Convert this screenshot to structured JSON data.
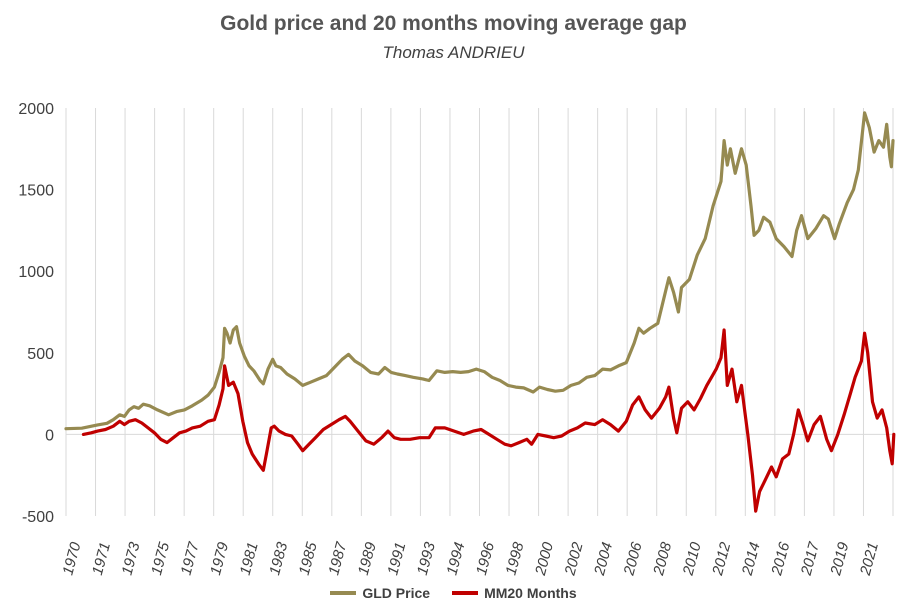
{
  "chart_data": {
    "type": "line",
    "title": "Gold price and 20 months moving average gap",
    "subtitle": "Thomas ANDRIEU",
    "xlabel": "",
    "ylabel": "",
    "ylim": [
      -500,
      2000
    ],
    "yticks": [
      -500,
      0,
      500,
      1000,
      1500,
      2000
    ],
    "xlim": [
      1970,
      2022.4
    ],
    "xticks": [
      "1970",
      "1971",
      "1973",
      "1975",
      "1977",
      "1979",
      "1981",
      "1983",
      "1985",
      "1987",
      "1989",
      "1991",
      "1993",
      "1994",
      "1996",
      "1998",
      "2000",
      "2002",
      "2004",
      "2006",
      "2008",
      "2010",
      "2012",
      "2014",
      "2016",
      "2017",
      "2019",
      "2021"
    ],
    "grid": "vertical",
    "legend_position": "bottom",
    "series": [
      {
        "name": "GLD Price",
        "color": "#968A51",
        "points": [
          [
            1970.0,
            35
          ],
          [
            1971.0,
            38
          ],
          [
            1972.0,
            58
          ],
          [
            1972.6,
            68
          ],
          [
            1973.0,
            90
          ],
          [
            1973.4,
            120
          ],
          [
            1973.7,
            110
          ],
          [
            1974.0,
            150
          ],
          [
            1974.3,
            170
          ],
          [
            1974.6,
            160
          ],
          [
            1974.9,
            185
          ],
          [
            1975.3,
            175
          ],
          [
            1975.8,
            150
          ],
          [
            1976.5,
            120
          ],
          [
            1977.0,
            140
          ],
          [
            1977.5,
            150
          ],
          [
            1978.0,
            175
          ],
          [
            1978.6,
            210
          ],
          [
            1979.0,
            240
          ],
          [
            1979.4,
            290
          ],
          [
            1979.7,
            380
          ],
          [
            1979.95,
            470
          ],
          [
            1980.05,
            650
          ],
          [
            1980.2,
            620
          ],
          [
            1980.4,
            560
          ],
          [
            1980.6,
            640
          ],
          [
            1980.8,
            660
          ],
          [
            1981.0,
            560
          ],
          [
            1981.3,
            480
          ],
          [
            1981.6,
            420
          ],
          [
            1981.9,
            390
          ],
          [
            1982.3,
            330
          ],
          [
            1982.5,
            310
          ],
          [
            1982.8,
            400
          ],
          [
            1983.1,
            460
          ],
          [
            1983.3,
            420
          ],
          [
            1983.6,
            410
          ],
          [
            1984.0,
            370
          ],
          [
            1984.5,
            340
          ],
          [
            1985.0,
            300
          ],
          [
            1985.5,
            320
          ],
          [
            1986.0,
            340
          ],
          [
            1986.5,
            360
          ],
          [
            1987.0,
            410
          ],
          [
            1987.5,
            460
          ],
          [
            1987.9,
            490
          ],
          [
            1988.3,
            450
          ],
          [
            1988.8,
            420
          ],
          [
            1989.3,
            380
          ],
          [
            1989.8,
            370
          ],
          [
            1990.2,
            410
          ],
          [
            1990.6,
            380
          ],
          [
            1991.0,
            370
          ],
          [
            1991.5,
            360
          ],
          [
            1992.0,
            350
          ],
          [
            1992.6,
            340
          ],
          [
            1993.0,
            330
          ],
          [
            1993.5,
            390
          ],
          [
            1994.0,
            380
          ],
          [
            1994.5,
            385
          ],
          [
            1995.0,
            380
          ],
          [
            1995.5,
            385
          ],
          [
            1996.0,
            400
          ],
          [
            1996.5,
            385
          ],
          [
            1997.0,
            350
          ],
          [
            1997.5,
            330
          ],
          [
            1998.0,
            300
          ],
          [
            1998.5,
            290
          ],
          [
            1999.0,
            285
          ],
          [
            1999.6,
            260
          ],
          [
            2000.0,
            290
          ],
          [
            2000.5,
            275
          ],
          [
            2001.0,
            265
          ],
          [
            2001.5,
            270
          ],
          [
            2002.0,
            300
          ],
          [
            2002.5,
            315
          ],
          [
            2003.0,
            350
          ],
          [
            2003.5,
            360
          ],
          [
            2004.0,
            400
          ],
          [
            2004.5,
            395
          ],
          [
            2005.0,
            420
          ],
          [
            2005.5,
            440
          ],
          [
            2006.0,
            560
          ],
          [
            2006.3,
            650
          ],
          [
            2006.6,
            620
          ],
          [
            2007.0,
            650
          ],
          [
            2007.5,
            680
          ],
          [
            2008.0,
            880
          ],
          [
            2008.2,
            960
          ],
          [
            2008.5,
            870
          ],
          [
            2008.8,
            750
          ],
          [
            2009.0,
            900
          ],
          [
            2009.5,
            950
          ],
          [
            2010.0,
            1100
          ],
          [
            2010.5,
            1200
          ],
          [
            2011.0,
            1400
          ],
          [
            2011.5,
            1550
          ],
          [
            2011.7,
            1800
          ],
          [
            2011.9,
            1650
          ],
          [
            2012.1,
            1750
          ],
          [
            2012.4,
            1600
          ],
          [
            2012.8,
            1750
          ],
          [
            2013.1,
            1650
          ],
          [
            2013.4,
            1400
          ],
          [
            2013.6,
            1220
          ],
          [
            2013.9,
            1250
          ],
          [
            2014.2,
            1330
          ],
          [
            2014.6,
            1300
          ],
          [
            2015.0,
            1200
          ],
          [
            2015.5,
            1150
          ],
          [
            2016.0,
            1090
          ],
          [
            2016.3,
            1250
          ],
          [
            2016.6,
            1340
          ],
          [
            2017.0,
            1200
          ],
          [
            2017.5,
            1260
          ],
          [
            2018.0,
            1340
          ],
          [
            2018.3,
            1320
          ],
          [
            2018.7,
            1200
          ],
          [
            2019.0,
            1290
          ],
          [
            2019.5,
            1420
          ],
          [
            2019.9,
            1500
          ],
          [
            2020.2,
            1620
          ],
          [
            2020.6,
            1970
          ],
          [
            2020.9,
            1880
          ],
          [
            2021.2,
            1730
          ],
          [
            2021.5,
            1800
          ],
          [
            2021.8,
            1760
          ],
          [
            2022.0,
            1900
          ],
          [
            2022.2,
            1700
          ],
          [
            2022.3,
            1640
          ],
          [
            2022.4,
            1800
          ]
        ]
      },
      {
        "name": "MM20 Months",
        "color": "#C00000",
        "points": [
          [
            1971.1,
            0
          ],
          [
            1971.6,
            10
          ],
          [
            1972.0,
            20
          ],
          [
            1972.5,
            30
          ],
          [
            1973.0,
            50
          ],
          [
            1973.4,
            80
          ],
          [
            1973.7,
            60
          ],
          [
            1974.0,
            80
          ],
          [
            1974.4,
            90
          ],
          [
            1974.8,
            70
          ],
          [
            1975.2,
            40
          ],
          [
            1975.6,
            10
          ],
          [
            1976.0,
            -30
          ],
          [
            1976.4,
            -50
          ],
          [
            1976.8,
            -20
          ],
          [
            1977.2,
            10
          ],
          [
            1977.6,
            20
          ],
          [
            1978.0,
            40
          ],
          [
            1978.5,
            50
          ],
          [
            1979.0,
            80
          ],
          [
            1979.4,
            90
          ],
          [
            1979.7,
            180
          ],
          [
            1979.95,
            280
          ],
          [
            1980.05,
            420
          ],
          [
            1980.3,
            300
          ],
          [
            1980.6,
            320
          ],
          [
            1980.9,
            250
          ],
          [
            1981.2,
            80
          ],
          [
            1981.5,
            -50
          ],
          [
            1981.8,
            -120
          ],
          [
            1982.2,
            -180
          ],
          [
            1982.5,
            -220
          ],
          [
            1982.7,
            -120
          ],
          [
            1983.0,
            40
          ],
          [
            1983.2,
            50
          ],
          [
            1983.5,
            20
          ],
          [
            1983.9,
            0
          ],
          [
            1984.3,
            -10
          ],
          [
            1984.7,
            -60
          ],
          [
            1985.0,
            -100
          ],
          [
            1985.4,
            -60
          ],
          [
            1985.8,
            -20
          ],
          [
            1986.3,
            30
          ],
          [
            1986.8,
            60
          ],
          [
            1987.3,
            90
          ],
          [
            1987.7,
            110
          ],
          [
            1988.0,
            80
          ],
          [
            1988.5,
            20
          ],
          [
            1989.0,
            -40
          ],
          [
            1989.5,
            -60
          ],
          [
            1990.0,
            -20
          ],
          [
            1990.4,
            20
          ],
          [
            1990.8,
            -20
          ],
          [
            1991.2,
            -30
          ],
          [
            1991.8,
            -30
          ],
          [
            1992.4,
            -20
          ],
          [
            1993.0,
            -20
          ],
          [
            1993.4,
            40
          ],
          [
            1994.0,
            40
          ],
          [
            1994.6,
            20
          ],
          [
            1995.2,
            0
          ],
          [
            1995.8,
            20
          ],
          [
            1996.3,
            30
          ],
          [
            1996.8,
            0
          ],
          [
            1997.3,
            -30
          ],
          [
            1997.8,
            -60
          ],
          [
            1998.2,
            -70
          ],
          [
            1998.7,
            -50
          ],
          [
            1999.2,
            -30
          ],
          [
            1999.5,
            -60
          ],
          [
            1999.9,
            0
          ],
          [
            2000.4,
            -10
          ],
          [
            2000.9,
            -20
          ],
          [
            2001.4,
            -10
          ],
          [
            2001.9,
            20
          ],
          [
            2002.4,
            40
          ],
          [
            2002.9,
            70
          ],
          [
            2003.5,
            60
          ],
          [
            2004.0,
            90
          ],
          [
            2004.5,
            60
          ],
          [
            2005.0,
            20
          ],
          [
            2005.5,
            80
          ],
          [
            2005.9,
            180
          ],
          [
            2006.3,
            230
          ],
          [
            2006.7,
            150
          ],
          [
            2007.1,
            100
          ],
          [
            2007.6,
            160
          ],
          [
            2008.0,
            230
          ],
          [
            2008.2,
            290
          ],
          [
            2008.5,
            100
          ],
          [
            2008.7,
            10
          ],
          [
            2009.0,
            160
          ],
          [
            2009.4,
            200
          ],
          [
            2009.8,
            150
          ],
          [
            2010.2,
            220
          ],
          [
            2010.6,
            300
          ],
          [
            2010.9,
            350
          ],
          [
            2011.2,
            400
          ],
          [
            2011.5,
            470
          ],
          [
            2011.7,
            640
          ],
          [
            2011.9,
            300
          ],
          [
            2012.2,
            400
          ],
          [
            2012.5,
            200
          ],
          [
            2012.8,
            300
          ],
          [
            2013.0,
            150
          ],
          [
            2013.2,
            0
          ],
          [
            2013.5,
            -250
          ],
          [
            2013.7,
            -470
          ],
          [
            2013.95,
            -350
          ],
          [
            2014.3,
            -280
          ],
          [
            2014.7,
            -200
          ],
          [
            2015.0,
            -260
          ],
          [
            2015.4,
            -150
          ],
          [
            2015.8,
            -120
          ],
          [
            2016.1,
            0
          ],
          [
            2016.4,
            150
          ],
          [
            2016.7,
            60
          ],
          [
            2017.0,
            -40
          ],
          [
            2017.4,
            60
          ],
          [
            2017.8,
            110
          ],
          [
            2018.2,
            -30
          ],
          [
            2018.5,
            -100
          ],
          [
            2018.9,
            0
          ],
          [
            2019.3,
            120
          ],
          [
            2019.7,
            250
          ],
          [
            2020.0,
            350
          ],
          [
            2020.4,
            450
          ],
          [
            2020.6,
            620
          ],
          [
            2020.8,
            500
          ],
          [
            2021.1,
            200
          ],
          [
            2021.4,
            100
          ],
          [
            2021.7,
            150
          ],
          [
            2022.0,
            40
          ],
          [
            2022.2,
            -100
          ],
          [
            2022.35,
            -180
          ],
          [
            2022.45,
            0
          ]
        ]
      }
    ]
  }
}
